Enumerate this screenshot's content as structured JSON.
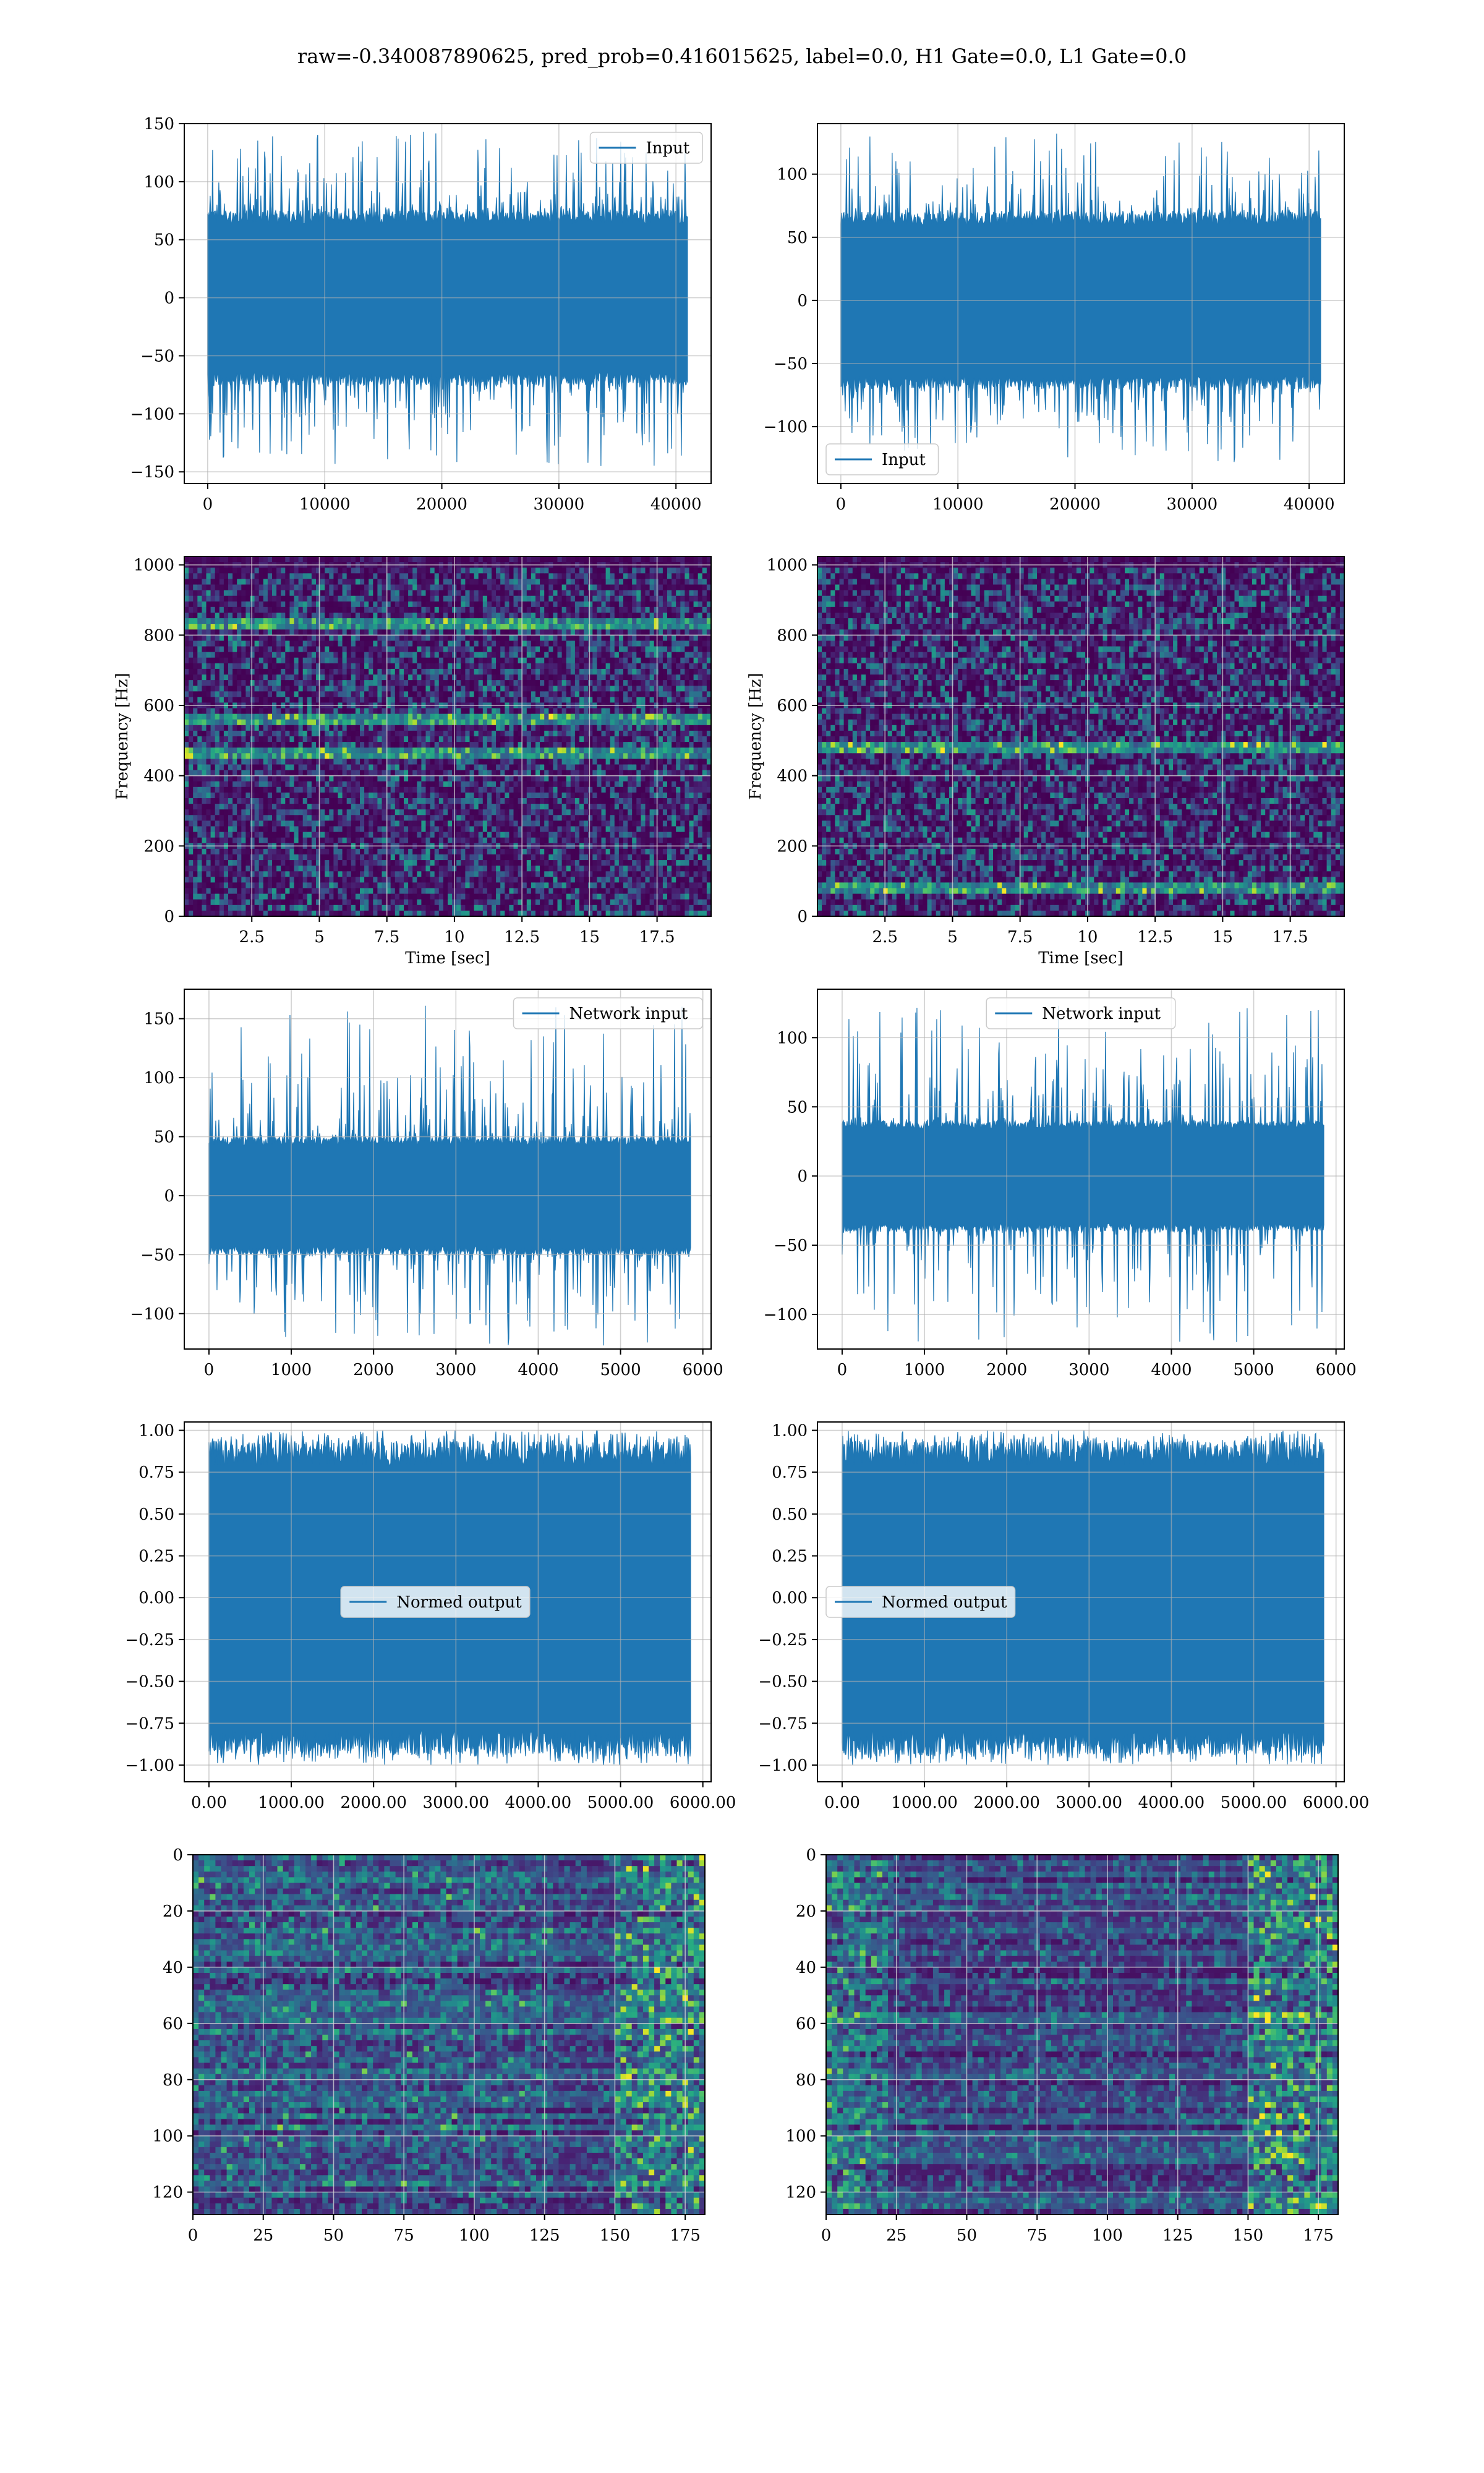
{
  "figure": {
    "suptitle": "raw=-0.340087890625, pred_prob=0.416015625, label=0.0, H1 Gate=0.0, L1 Gate=0.0"
  },
  "colors": {
    "series": "#1f77b4",
    "viridis_low": "#440154",
    "viridis_high": "#fde725",
    "grid": "#b0b0b0"
  },
  "chart_data": [
    {
      "id": "r1c1",
      "type": "line",
      "title": "",
      "xlabel": "",
      "ylabel": "",
      "legend": {
        "label": "Input",
        "placement": "top-right"
      },
      "xlim": [
        -2000,
        43000
      ],
      "ylim": [
        -160,
        150
      ],
      "xticks": [
        0,
        10000,
        20000,
        30000,
        40000
      ],
      "yticks": [
        -150,
        -100,
        -50,
        0,
        50,
        100,
        150
      ],
      "signal": {
        "n": 40960,
        "envelope": 75,
        "spike_max": 143,
        "spike_min": -145
      }
    },
    {
      "id": "r1c2",
      "type": "line",
      "title": "",
      "xlabel": "",
      "ylabel": "",
      "legend": {
        "label": "Input",
        "placement": "bottom-left"
      },
      "xlim": [
        -2000,
        43000
      ],
      "ylim": [
        -145,
        140
      ],
      "xticks": [
        0,
        10000,
        20000,
        30000,
        40000
      ],
      "yticks": [
        -100,
        -50,
        0,
        50,
        100
      ],
      "signal": {
        "n": 40960,
        "envelope": 70,
        "spike_max": 132,
        "spike_min": -128
      }
    },
    {
      "id": "r2c1",
      "type": "heatmap",
      "title": "",
      "xlabel": "Time [sec]",
      "ylabel": "Frequency [Hz]",
      "xlim": [
        0,
        19.5
      ],
      "ylim": [
        0,
        1024
      ],
      "xticks": [
        2.5,
        5.0,
        7.5,
        10.0,
        12.5,
        15.0,
        17.5
      ],
      "yticks": [
        0,
        200,
        400,
        600,
        800,
        1000
      ],
      "bands_hz": [
        838,
        560,
        470
      ]
    },
    {
      "id": "r2c2",
      "type": "heatmap",
      "title": "",
      "xlabel": "Time [sec]",
      "ylabel": "Frequency [Hz]",
      "xlim": [
        0,
        19.5
      ],
      "ylim": [
        0,
        1024
      ],
      "xticks": [
        2.5,
        5.0,
        7.5,
        10.0,
        12.5,
        15.0,
        17.5
      ],
      "yticks": [
        0,
        200,
        400,
        600,
        800,
        1000
      ],
      "bands_hz": [
        80,
        480
      ]
    },
    {
      "id": "r3c1",
      "type": "line",
      "title": "",
      "xlabel": "",
      "ylabel": "",
      "legend": {
        "label": "Network input",
        "placement": "top-right"
      },
      "xlim": [
        -300,
        6100
      ],
      "ylim": [
        -130,
        175
      ],
      "xticks": [
        0,
        1000,
        2000,
        3000,
        4000,
        5000,
        6000
      ],
      "yticks": [
        -100,
        -50,
        0,
        50,
        100,
        150
      ],
      "signal": {
        "n": 5850,
        "envelope": 50,
        "spike_max": 161,
        "spike_min": -127
      }
    },
    {
      "id": "r3c2",
      "type": "line",
      "title": "",
      "xlabel": "",
      "ylabel": "",
      "legend": {
        "label": "Network input",
        "placement": "top-center"
      },
      "xlim": [
        -300,
        6100
      ],
      "ylim": [
        -125,
        135
      ],
      "xticks": [
        0,
        1000,
        2000,
        3000,
        4000,
        5000,
        6000
      ],
      "yticks": [
        -100,
        -50,
        0,
        50,
        100
      ],
      "signal": {
        "n": 5850,
        "envelope": 40,
        "spike_max": 123,
        "spike_min": -120
      }
    },
    {
      "id": "r4c1",
      "type": "line",
      "title": "",
      "xlabel": "",
      "ylabel": "",
      "legend": {
        "label": "Normed output",
        "placement": "center"
      },
      "xlim": [
        -300,
        6100
      ],
      "ylim": [
        -1.1,
        1.05
      ],
      "xticks": [
        0,
        1000,
        2000,
        3000,
        4000,
        5000,
        6000
      ],
      "yticks": [
        -1.0,
        -0.75,
        -0.5,
        -0.25,
        0.0,
        0.25,
        0.5,
        0.75,
        1.0
      ],
      "tick_format": 2,
      "signal": {
        "n": 5850,
        "envelope": 0.93,
        "spike_max": 1.0,
        "spike_min": -1.0
      }
    },
    {
      "id": "r4c2",
      "type": "line",
      "title": "",
      "xlabel": "",
      "ylabel": "",
      "legend": {
        "label": "Normed output",
        "placement": "center-left"
      },
      "xlim": [
        -300,
        6100
      ],
      "ylim": [
        -1.1,
        1.05
      ],
      "xticks": [
        0,
        1000,
        2000,
        3000,
        4000,
        5000,
        6000
      ],
      "yticks": [
        -1.0,
        -0.75,
        -0.5,
        -0.25,
        0.0,
        0.25,
        0.5,
        0.75,
        1.0
      ],
      "tick_format": 2,
      "signal": {
        "n": 5850,
        "envelope": 0.93,
        "spike_max": 1.0,
        "spike_min": -1.0
      }
    },
    {
      "id": "r5c1",
      "type": "heatmap",
      "title": "",
      "xlabel": "",
      "ylabel": "",
      "xlim": [
        0,
        182
      ],
      "ylim": [
        128,
        0
      ],
      "xticks": [
        0,
        25,
        50,
        75,
        100,
        125,
        150,
        175
      ],
      "yticks": [
        0,
        20,
        40,
        60,
        80,
        100,
        120
      ]
    },
    {
      "id": "r5c2",
      "type": "heatmap",
      "title": "",
      "xlabel": "",
      "ylabel": "",
      "xlim": [
        0,
        182
      ],
      "ylim": [
        128,
        0
      ],
      "xticks": [
        0,
        25,
        50,
        75,
        100,
        125,
        150,
        175
      ],
      "yticks": [
        0,
        20,
        40,
        60,
        80,
        100,
        120
      ]
    }
  ]
}
